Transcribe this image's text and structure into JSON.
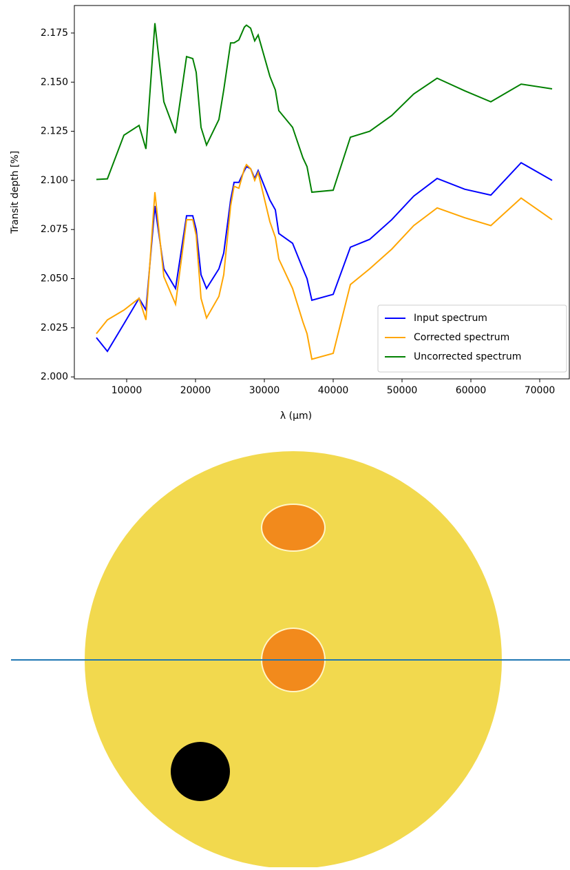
{
  "chart_data": {
    "type": "line",
    "xlabel": "λ (μm)",
    "ylabel": "Transit depth [%]",
    "x": [
      5600,
      7200,
      9600,
      11800,
      12800,
      14100,
      15400,
      17100,
      18700,
      19600,
      20100,
      20800,
      21600,
      23400,
      24100,
      25100,
      25600,
      26300,
      27100,
      27400,
      28000,
      28600,
      29100,
      30800,
      31600,
      32100,
      34100,
      35600,
      36200,
      36900,
      40000,
      42500,
      45300,
      48500,
      51700,
      55100,
      59100,
      62900,
      67300,
      71800
    ],
    "series": [
      {
        "name": "Input spectrum",
        "color": "#0000ff",
        "values": [
          2.02,
          2.013,
          2.027,
          2.04,
          2.034,
          2.087,
          2.055,
          2.045,
          2.082,
          2.082,
          2.075,
          2.052,
          2.045,
          2.055,
          2.063,
          2.09,
          2.099,
          2.099,
          2.105,
          2.107,
          2.106,
          2.101,
          2.105,
          2.09,
          2.085,
          2.073,
          2.068,
          2.055,
          2.05,
          2.039,
          2.042,
          2.066,
          2.07,
          2.08,
          2.092,
          2.101,
          2.0955,
          2.0925,
          2.109,
          2.1
        ]
      },
      {
        "name": "Corrected spectrum",
        "color": "#ffa500",
        "values": [
          2.022,
          2.029,
          2.034,
          2.04,
          2.029,
          2.094,
          2.051,
          2.037,
          2.08,
          2.08,
          2.072,
          2.04,
          2.03,
          2.041,
          2.052,
          2.087,
          2.097,
          2.096,
          2.106,
          2.108,
          2.106,
          2.1,
          2.104,
          2.079,
          2.071,
          2.06,
          2.045,
          2.028,
          2.022,
          2.009,
          2.012,
          2.047,
          2.055,
          2.065,
          2.077,
          2.086,
          2.081,
          2.077,
          2.091,
          2.08
        ]
      },
      {
        "name": "Uncorrected spectrum",
        "color": "#008000",
        "values": [
          2.1005,
          2.1008,
          2.123,
          2.128,
          2.116,
          2.18,
          2.14,
          2.124,
          2.163,
          2.162,
          2.155,
          2.127,
          2.118,
          2.131,
          2.146,
          2.17,
          2.17,
          2.1715,
          2.178,
          2.179,
          2.1775,
          2.171,
          2.174,
          2.153,
          2.146,
          2.1355,
          2.127,
          2.1115,
          2.107,
          2.094,
          2.095,
          2.122,
          2.125,
          2.133,
          2.144,
          2.152,
          2.1456,
          2.14,
          2.149,
          2.1466
        ]
      }
    ],
    "xlim": [
      2400,
      74300
    ],
    "ylim": [
      1.999,
      2.189
    ],
    "xticks": [
      10000,
      20000,
      30000,
      40000,
      50000,
      60000,
      70000
    ],
    "yticks": [
      {
        "value": 2.0,
        "label": "2.000"
      },
      2.025,
      {
        "value": 2.05,
        "label": "2.050"
      },
      2.075,
      {
        "value": 2.1,
        "label": "2.100"
      },
      2.125,
      {
        "value": 2.15,
        "label": "2.150"
      },
      2.175
    ],
    "legend": "lower right",
    "grid": false
  }
}
